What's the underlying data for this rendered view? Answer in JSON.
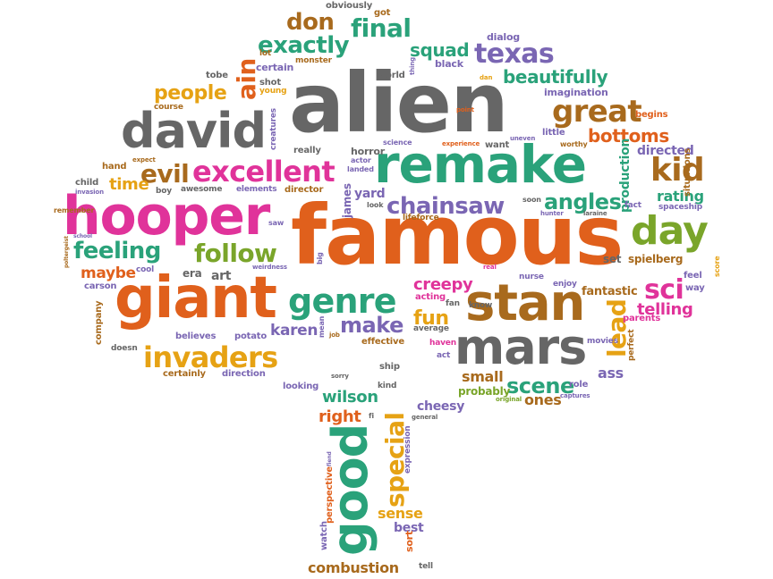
{
  "cloud": {
    "words": {
      "alien": "alien",
      "famous": "famous",
      "remake": "remake",
      "hooper": "hooper",
      "giant": "giant",
      "david": "david",
      "stan": "stan",
      "mars": "mars",
      "good": "good",
      "genre": "genre",
      "excellent": "excellent",
      "invaders": "invaders",
      "chainsaw": "chainsaw",
      "exactly": "exactly",
      "final": "final",
      "don": "don",
      "great": "great",
      "day": "day",
      "kid": "kid",
      "follow": "follow",
      "feeling": "feeling",
      "evil": "evil",
      "special": "special",
      "texas": "texas",
      "beautifully": "beautifully",
      "people": "people",
      "sci": "sci",
      "lead": "lead",
      "bottoms": "bottoms",
      "angles": "angles",
      "make": "make",
      "scene": "scene",
      "fun": "fun",
      "creepy": "creepy",
      "ain": "ain",
      "squad": "squad",
      "telling": "telling",
      "rating": "rating",
      "time": "time",
      "maybe": "maybe",
      "karen": "karen",
      "wilson": "wilson",
      "right": "right",
      "sense": "sense",
      "combustion": "combustion",
      "best": "best",
      "ones": "ones",
      "small": "small",
      "probably": "probably",
      "cheesy": "cheesy",
      "ass": "ass",
      "fantastic": "fantastic",
      "production": "production",
      "directed": "directed",
      "certain": "certain",
      "obviously": "obviously",
      "got": "got",
      "dialog": "dialog",
      "lot": "lot",
      "monster": "monster",
      "black": "black",
      "tobe": "tobe",
      "shot": "shot",
      "young": "young",
      "world": "world",
      "imagination": "imagination",
      "course": "course",
      "creatures": "creatures",
      "really": "really",
      "horror": "horror",
      "science": "science",
      "experience": "experience",
      "want": "want",
      "little": "little",
      "worthy": "worthy",
      "begins": "begins",
      "hand": "hand",
      "expect": "expect",
      "actor": "actor",
      "landed": "landed",
      "uneven": "uneven",
      "situations": "situations",
      "child": "child",
      "invasion": "invasion",
      "boy": "boy",
      "awesome": "awesome",
      "elements": "elements",
      "director": "director",
      "james": "james",
      "yard": "yard",
      "soon": "soon",
      "fact": "fact",
      "hunter": "hunter",
      "laraine": "laraine",
      "spaceship": "spaceship",
      "remember": "remember",
      "school": "school",
      "saw": "saw",
      "look": "look",
      "lifeforce": "lifeforce",
      "poltergeist": "poltergeist",
      "big": "big",
      "weirdness": "weirdness",
      "real": "real",
      "set": "set",
      "spielberg": "spielberg",
      "score": "score",
      "carson": "carson",
      "cool": "cool",
      "era": "era",
      "art": "art",
      "acting": "acting",
      "nurse": "nurse",
      "enjoy": "enjoy",
      "feel": "feel",
      "way": "way",
      "company": "company",
      "fan": "fan",
      "know": "know",
      "parents": "parents",
      "believes": "believes",
      "potato": "potato",
      "mean": "mean",
      "job": "job",
      "average": "average",
      "effective": "effective",
      "haven": "haven",
      "perfect": "perfect",
      "movies": "movies",
      "doesn": "doesn",
      "act": "act",
      "certainly": "certainly",
      "direction": "direction",
      "sorry": "sorry",
      "ship": "ship",
      "role": "role",
      "original": "original",
      "captures": "captures",
      "looking": "looking",
      "kind": "kind",
      "fi": "fi",
      "general": "general",
      "expression": "expression",
      "fiend": "fiend",
      "perspective": "perspective",
      "watch": "watch",
      "sort": "sort",
      "tell": "tell",
      "thing": "thing",
      "point": "point",
      "dan": "dan"
    }
  }
}
